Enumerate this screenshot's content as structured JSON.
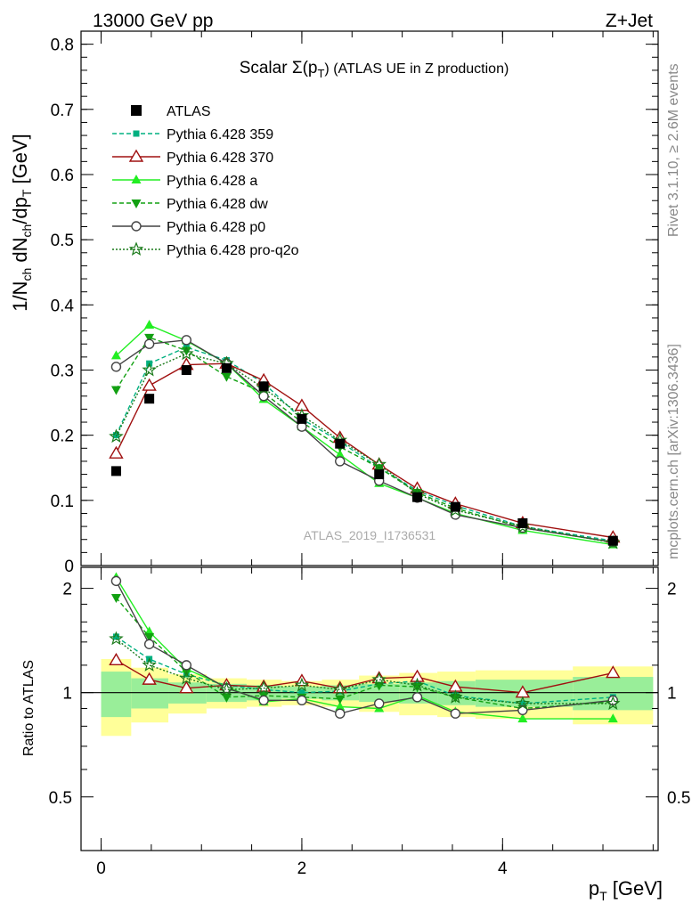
{
  "header": {
    "energy": "13000 GeV pp",
    "process": "Z+Jet"
  },
  "side_labels": {
    "rivet": "Rivet 3.1.10, ≥ 2.6M events",
    "mcplots": "mcplots.cern.ch [arXiv:1306.3436]"
  },
  "watermark": "ATLAS_2019_I1736531",
  "chart_data": {
    "type": "line",
    "title": {
      "prefix": "Scalar Σ(p",
      "sub": "T",
      "suffix": ") (ATLAS UE in Z production)"
    },
    "xlabel": {
      "main": "p",
      "sub": "T",
      "unit": " [GeV]"
    },
    "ylabel": {
      "p1": "1/N",
      "s1": "ch",
      "p2": " dN",
      "s2": "ch",
      "p3": "/dp",
      "s3": "T",
      "p4": " [GeV]"
    },
    "ratio_ylabel": "Ratio to ATLAS",
    "xlim": [
      -0.2,
      5.55
    ],
    "ylim": [
      0,
      0.82
    ],
    "ratio_ylim": [
      0.35,
      2.3
    ],
    "x_ticks": [
      "0",
      "2",
      "4"
    ],
    "x_tick_values": [
      0,
      2,
      4
    ],
    "y_ticks": [
      "0",
      "0.1",
      "0.2",
      "0.3",
      "0.4",
      "0.5",
      "0.6",
      "0.7",
      "0.8"
    ],
    "y_tick_values": [
      0,
      0.1,
      0.2,
      0.3,
      0.4,
      0.5,
      0.6,
      0.7,
      0.8
    ],
    "ratio_ticks": [
      "0.5",
      "1",
      "2"
    ],
    "ratio_tick_values": [
      0.5,
      1,
      2
    ],
    "x": [
      0.15,
      0.48,
      0.85,
      1.25,
      1.62,
      2.0,
      2.38,
      2.77,
      3.15,
      3.53,
      4.2,
      5.1
    ],
    "bin_edges": [
      0,
      0.3,
      0.67,
      1.05,
      1.45,
      1.8,
      2.2,
      2.57,
      2.97,
      3.35,
      3.73,
      4.7,
      5.5
    ],
    "data": {
      "name": "ATLAS",
      "values": [
        0.145,
        0.256,
        0.3,
        0.303,
        0.275,
        0.225,
        0.187,
        0.14,
        0.105,
        0.09,
        0.065,
        0.038
      ],
      "band_green": [
        0.15,
        0.1,
        0.07,
        0.06,
        0.05,
        0.04,
        0.05,
        0.06,
        0.07,
        0.08,
        0.09,
        0.11
      ],
      "band_yellow": [
        0.25,
        0.18,
        0.13,
        0.1,
        0.09,
        0.08,
        0.09,
        0.12,
        0.14,
        0.15,
        0.16,
        0.19
      ],
      "color": "#000000"
    },
    "series": [
      {
        "name": "Pythia 6.428 359",
        "color": "#00b080",
        "dash": "5,3",
        "marker": "square-small",
        "values": [
          0.2,
          0.31,
          0.335,
          0.315,
          0.28,
          0.225,
          0.19,
          0.15,
          0.115,
          0.092,
          0.06,
          0.038
        ]
      },
      {
        "name": "Pythia 6.428 370",
        "color": "#a01010",
        "dash": "",
        "marker": "triangle-open",
        "values": [
          0.172,
          0.276,
          0.308,
          0.31,
          0.284,
          0.245,
          0.196,
          0.155,
          0.118,
          0.095,
          0.065,
          0.043
        ]
      },
      {
        "name": "Pythia 6.428 a",
        "color": "#22ee22",
        "dash": "",
        "marker": "triangle-filled",
        "values": [
          0.322,
          0.369,
          0.345,
          0.31,
          0.255,
          0.213,
          0.17,
          0.126,
          0.104,
          0.08,
          0.054,
          0.032
        ]
      },
      {
        "name": "Pythia 6.428 dw",
        "color": "#12a012",
        "dash": "5,3",
        "marker": "triangle-down",
        "values": [
          0.27,
          0.35,
          0.33,
          0.29,
          0.265,
          0.22,
          0.182,
          0.15,
          0.112,
          0.088,
          0.058,
          0.036
        ]
      },
      {
        "name": "Pythia 6.428 p0",
        "color": "#444444",
        "dash": "",
        "marker": "circle-open",
        "values": [
          0.305,
          0.34,
          0.346,
          0.31,
          0.26,
          0.213,
          0.16,
          0.13,
          0.104,
          0.078,
          0.058,
          0.036
        ]
      },
      {
        "name": "Pythia 6.428 pro-q2o",
        "color": "#1a7a1a",
        "dash": "2,2",
        "marker": "star-open",
        "values": [
          0.198,
          0.3,
          0.325,
          0.31,
          0.272,
          0.23,
          0.192,
          0.155,
          0.11,
          0.085,
          0.06,
          0.035
        ]
      }
    ],
    "ratios": [
      [
        1.45,
        1.25,
        1.13,
        1.05,
        1.02,
        1.0,
        1.01,
        1.06,
        1.08,
        0.98,
        0.93,
        0.97
      ],
      [
        1.24,
        1.09,
        1.03,
        1.05,
        1.04,
        1.08,
        1.03,
        1.1,
        1.11,
        1.04,
        1.0,
        1.14
      ],
      [
        2.15,
        1.5,
        1.17,
        1.04,
        0.94,
        0.96,
        0.91,
        0.9,
        0.98,
        0.88,
        0.84,
        0.84
      ],
      [
        1.88,
        1.45,
        1.15,
        0.97,
        0.98,
        0.97,
        0.96,
        1.05,
        1.04,
        0.97,
        0.9,
        0.94
      ],
      [
        2.1,
        1.38,
        1.2,
        1.03,
        0.95,
        0.95,
        0.87,
        0.93,
        0.97,
        0.87,
        0.89,
        0.95
      ],
      [
        1.43,
        1.2,
        1.1,
        1.02,
        1.03,
        1.05,
        1.02,
        1.09,
        1.05,
        0.97,
        0.93,
        0.93
      ]
    ],
    "legend_position": "top-left",
    "grid": false
  }
}
